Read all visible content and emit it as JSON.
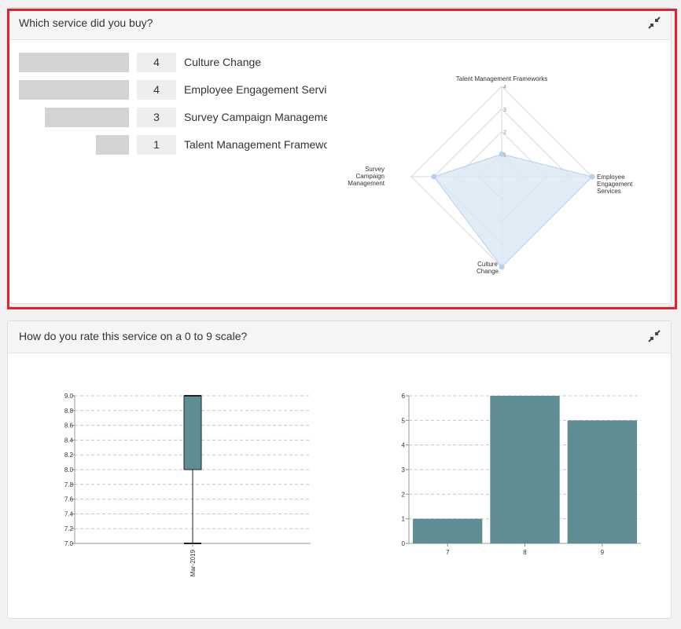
{
  "panel1": {
    "title": "Which service did you buy?",
    "collapse_icon": "compress-icon",
    "bars": [
      {
        "label": "Culture Change",
        "count": "4"
      },
      {
        "label": "Employee Engagement Services",
        "count": "4"
      },
      {
        "label": "Survey Campaign Management",
        "count": "3"
      },
      {
        "label": "Talent Management Frameworks",
        "count": "1"
      }
    ]
  },
  "panel2": {
    "title": "How do you rate this service on a 0 to 9 scale?",
    "collapse_icon": "compress-icon"
  },
  "colors": {
    "highlight": "#e8202a",
    "bar_gray": "#d3d3d3",
    "teal": "#5f8d94",
    "radar_fill": "#dbe7f5",
    "radar_stroke": "#b7d0ee"
  },
  "chart_data": [
    {
      "type": "radar",
      "axes": [
        "Talent Management Frameworks",
        "Employee Engagement Services",
        "Culture Change",
        "Survey Campaign Management"
      ],
      "axis_lines": [
        [
          "Talent Management Frameworks"
        ],
        [
          "Employee",
          "Engagement",
          "Services"
        ],
        [
          "Culture",
          "Change"
        ],
        [
          "Survey",
          "Campaign",
          "Management"
        ]
      ],
      "values": [
        1,
        4,
        4,
        3
      ],
      "ticks": [
        1,
        2,
        3,
        4
      ],
      "range": [
        0,
        4
      ]
    },
    {
      "type": "box",
      "categories": [
        "Mar-2019"
      ],
      "min": 7.0,
      "q1": 8.0,
      "median": 9.0,
      "q3": 9.0,
      "max": 9.0,
      "ylim": [
        7.0,
        9.0
      ],
      "yticks": [
        "7.0",
        "7.2",
        "7.4",
        "7.6",
        "7.8",
        "8.0",
        "8.2",
        "8.4",
        "8.6",
        "8.8",
        "9.0"
      ],
      "grid": true
    },
    {
      "type": "bar",
      "categories": [
        "7",
        "8",
        "9"
      ],
      "values": [
        1,
        6,
        5
      ],
      "ylim": [
        0,
        6
      ],
      "yticks": [
        "0",
        "1",
        "2",
        "3",
        "4",
        "5",
        "6"
      ],
      "grid": true
    }
  ]
}
